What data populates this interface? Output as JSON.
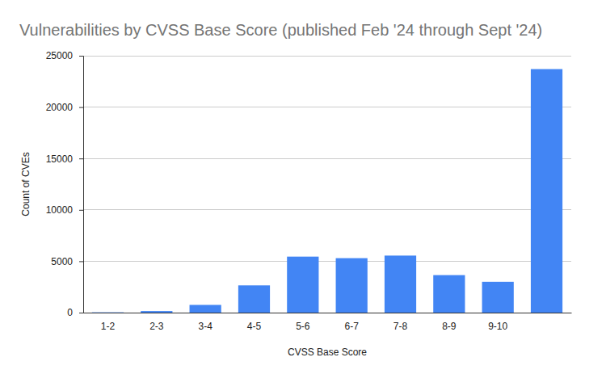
{
  "chart_data": {
    "type": "bar",
    "title": "Vulnerabilities by CVSS Base Score (published Feb '24 through Sept '24)",
    "x_label": "CVSS Base Score",
    "y_label": "Count of CVEs",
    "categories": [
      "1-2",
      "2-3",
      "3-4",
      "4-5",
      "5-6",
      "6-7",
      "7-8",
      "8-9",
      "9-10",
      null
    ],
    "values": [
      30,
      150,
      750,
      2650,
      5450,
      5300,
      5550,
      3650,
      3000,
      23700
    ],
    "color": "#4285f4",
    "ylim": [
      0,
      25000
    ],
    "yticks": [
      0,
      5000,
      10000,
      15000,
      20000,
      25000
    ],
    "grid": true
  }
}
